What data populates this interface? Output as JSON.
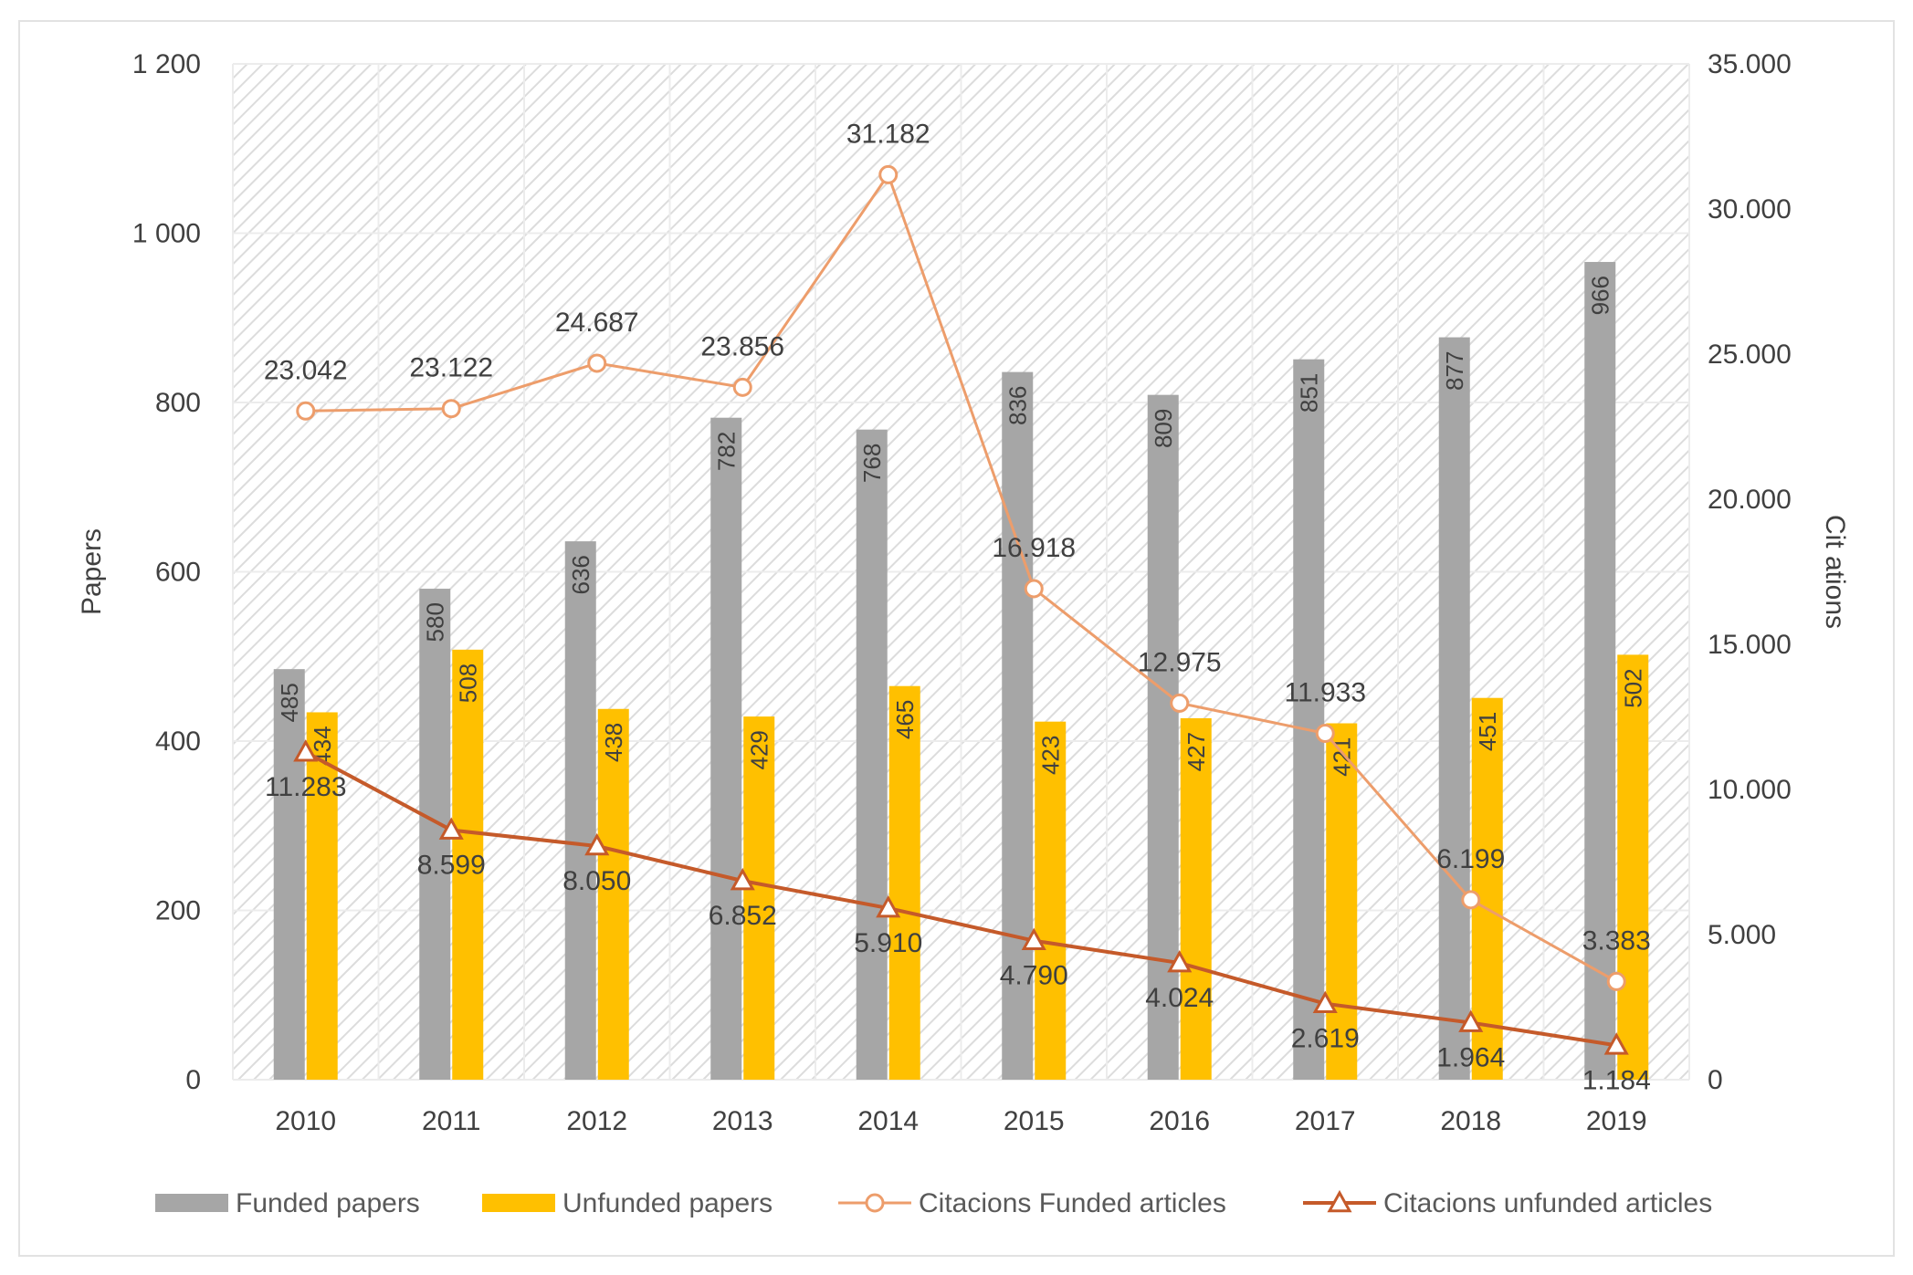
{
  "chart_data": {
    "type": "bar",
    "categories": [
      "2010",
      "2011",
      "2012",
      "2013",
      "2014",
      "2015",
      "2016",
      "2017",
      "2018",
      "2019"
    ],
    "series": [
      {
        "name": "Funded papers",
        "type": "bar",
        "axis": "left",
        "color": "#a6a6a6",
        "values": [
          485,
          580,
          636,
          782,
          768,
          836,
          809,
          851,
          877,
          966
        ]
      },
      {
        "name": "Unfunded papers",
        "type": "bar",
        "axis": "left",
        "color": "#ffc000",
        "values": [
          434,
          508,
          438,
          429,
          465,
          423,
          427,
          421,
          451,
          502
        ]
      },
      {
        "name": "Citacions Funded articles",
        "type": "line",
        "axis": "right",
        "color": "#ed9d6b",
        "marker": "circle",
        "values": [
          23042,
          23122,
          24687,
          23856,
          31182,
          16918,
          12975,
          11933,
          6199,
          3383
        ]
      },
      {
        "name": "Citacions unfunded articles",
        "type": "line",
        "axis": "right",
        "color": "#c55a2a",
        "marker": "triangle",
        "values": [
          11283,
          8599,
          8050,
          6852,
          5910,
          4790,
          4024,
          2619,
          1964,
          1184
        ]
      }
    ],
    "bar_labels": {
      "Funded papers": [
        "485",
        "580",
        "636",
        "782",
        "768",
        "836",
        "809",
        "851",
        "877",
        "966"
      ],
      "Unfunded papers": [
        "434",
        "508",
        "438",
        "429",
        "465",
        "423",
        "427",
        "421",
        "451",
        "502"
      ]
    },
    "line_labels": {
      "Citacions Funded articles": [
        "23.042",
        "23.122",
        "24.687",
        "23.856",
        "31.182",
        "16.918",
        "12.975",
        "11.933",
        "6.199",
        "3.383"
      ],
      "Citacions unfunded articles": [
        "11.283",
        "8.599",
        "8.050",
        "6.852",
        "5.910",
        "4.790",
        "4.024",
        "2.619",
        "1.964",
        "1.184"
      ]
    },
    "ylabel": "Papers",
    "y2label": "Cit ations",
    "ylim": [
      0,
      1200
    ],
    "y2lim": [
      0,
      35000
    ],
    "yticks": [
      0,
      200,
      400,
      600,
      800,
      1000,
      1200
    ],
    "ytick_labels": [
      "0",
      "200",
      "400",
      "600",
      "800",
      "1 000",
      "1 200"
    ],
    "y2ticks": [
      0,
      5000,
      10000,
      15000,
      20000,
      25000,
      30000,
      35000
    ],
    "y2tick_labels": [
      "0",
      "5.000",
      "10.000",
      "15.000",
      "20.000",
      "25.000",
      "30.000",
      "35.000"
    ],
    "grid": true,
    "legend_position": "bottom"
  }
}
